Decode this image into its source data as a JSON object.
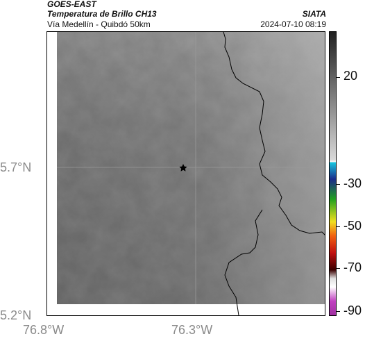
{
  "header": {
    "satellite": "GOES-EAST",
    "product": "Temperatura de Brillo CH13",
    "region": "Vía Medellín - Quibdó 50km",
    "organization": "SIATA",
    "timestamp": "2024-07-10 08:19"
  },
  "axes": {
    "lat_ticks": [
      "5.7°N",
      "5.2°N"
    ],
    "lon_ticks": [
      "76.8°W",
      "76.3°W"
    ]
  },
  "colorbar": {
    "tick_labels": [
      "20",
      "-30",
      "-50",
      "-70",
      "-90"
    ],
    "colors": {
      "warm_dark": "#202020",
      "warm_light": "#d8d8d8",
      "cyan": "#18c8e0",
      "blue": "#1a2a8a",
      "green": "#20a020",
      "yellow": "#f0e020",
      "orange": "#f06010",
      "red": "#c01010",
      "dark_red": "#3a0000",
      "magenta": "#c040c0"
    }
  },
  "map": {
    "marker_icon": "star-icon",
    "background_tone": "#777777",
    "grid_color": "#9a9a9a",
    "boundary_color": "#000000"
  }
}
